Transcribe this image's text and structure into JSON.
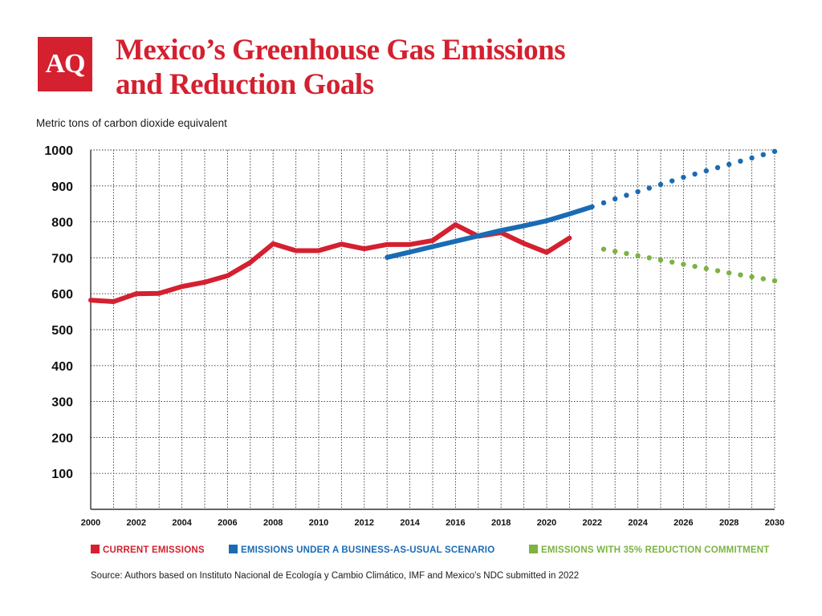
{
  "header": {
    "logo_text": "AQ",
    "title_line1": "Mexico’s Greenhouse Gas Emissions",
    "title_line2": "and Reduction Goals",
    "subtitle": "Metric tons of carbon dioxide equivalent"
  },
  "source": "Source: Authors based on Instituto Nacional de Ecología y Cambio Climático, IMF and Mexico's NDC submitted in 2022",
  "colors": {
    "brand_red": "#d4202f",
    "current": "#d4202f",
    "bau": "#1a6bb5",
    "reduction": "#7cb342",
    "grid": "#333333"
  },
  "chart_data": {
    "type": "line",
    "title": "Mexico’s Greenhouse Gas Emissions and Reduction Goals",
    "ylabel": "Metric tons of carbon dioxide equivalent",
    "xlabel": "",
    "xlim": [
      2000,
      2030
    ],
    "ylim": [
      0,
      1000
    ],
    "x_ticks": [
      2000,
      2002,
      2004,
      2006,
      2008,
      2010,
      2012,
      2014,
      2016,
      2018,
      2020,
      2022,
      2024,
      2026,
      2028,
      2030
    ],
    "y_ticks": [
      100,
      200,
      300,
      400,
      500,
      600,
      700,
      800,
      900,
      1000
    ],
    "grid": true,
    "grid_style": "dotted",
    "legend_position": "bottom",
    "series": [
      {
        "name": "CURRENT EMISSIONS",
        "style": "solid",
        "color": "#d4202f",
        "x": [
          2000,
          2001,
          2002,
          2003,
          2004,
          2005,
          2006,
          2007,
          2008,
          2009,
          2010,
          2011,
          2012,
          2013,
          2014,
          2015,
          2016,
          2017,
          2018,
          2019,
          2020,
          2021
        ],
        "y": [
          582,
          578,
          600,
          601,
          620,
          632,
          650,
          687,
          739,
          720,
          720,
          738,
          725,
          737,
          737,
          748,
          792,
          760,
          770,
          740,
          715,
          755
        ]
      },
      {
        "name": "EMISSIONS UNDER A BUSINESS-AS-USUAL SCENARIO",
        "style": "solid",
        "color": "#1a6bb5",
        "x": [
          2013,
          2014,
          2015,
          2016,
          2017,
          2018,
          2019,
          2020,
          2021,
          2022
        ],
        "y": [
          701,
          716,
          731,
          746,
          761,
          776,
          789,
          803,
          822,
          842
        ]
      },
      {
        "name": "EMISSIONS UNDER A BUSINESS-AS-USUAL SCENARIO",
        "style": "dotted",
        "color": "#1a6bb5",
        "x": [
          2022,
          2023,
          2024,
          2025,
          2026,
          2027,
          2028,
          2029,
          2030
        ],
        "y": [
          842,
          864,
          884,
          904,
          924,
          942,
          960,
          978,
          996
        ]
      },
      {
        "name": "EMISSIONS WITH 35% REDUCTION COMMITMENT",
        "style": "dotted",
        "color": "#7cb342",
        "x": [
          2022,
          2023,
          2024,
          2025,
          2026,
          2027,
          2028,
          2029,
          2030
        ],
        "y": [
          730,
          718,
          706,
          694,
          682,
          670,
          658,
          647,
          636
        ]
      }
    ],
    "legend": [
      {
        "label": "CURRENT EMISSIONS",
        "color": "#d4202f"
      },
      {
        "label": "EMISSIONS UNDER A BUSINESS-AS-USUAL SCENARIO",
        "color": "#1a6bb5"
      },
      {
        "label": "EMISSIONS WITH 35% REDUCTION COMMITMENT",
        "color": "#7cb342"
      }
    ]
  }
}
